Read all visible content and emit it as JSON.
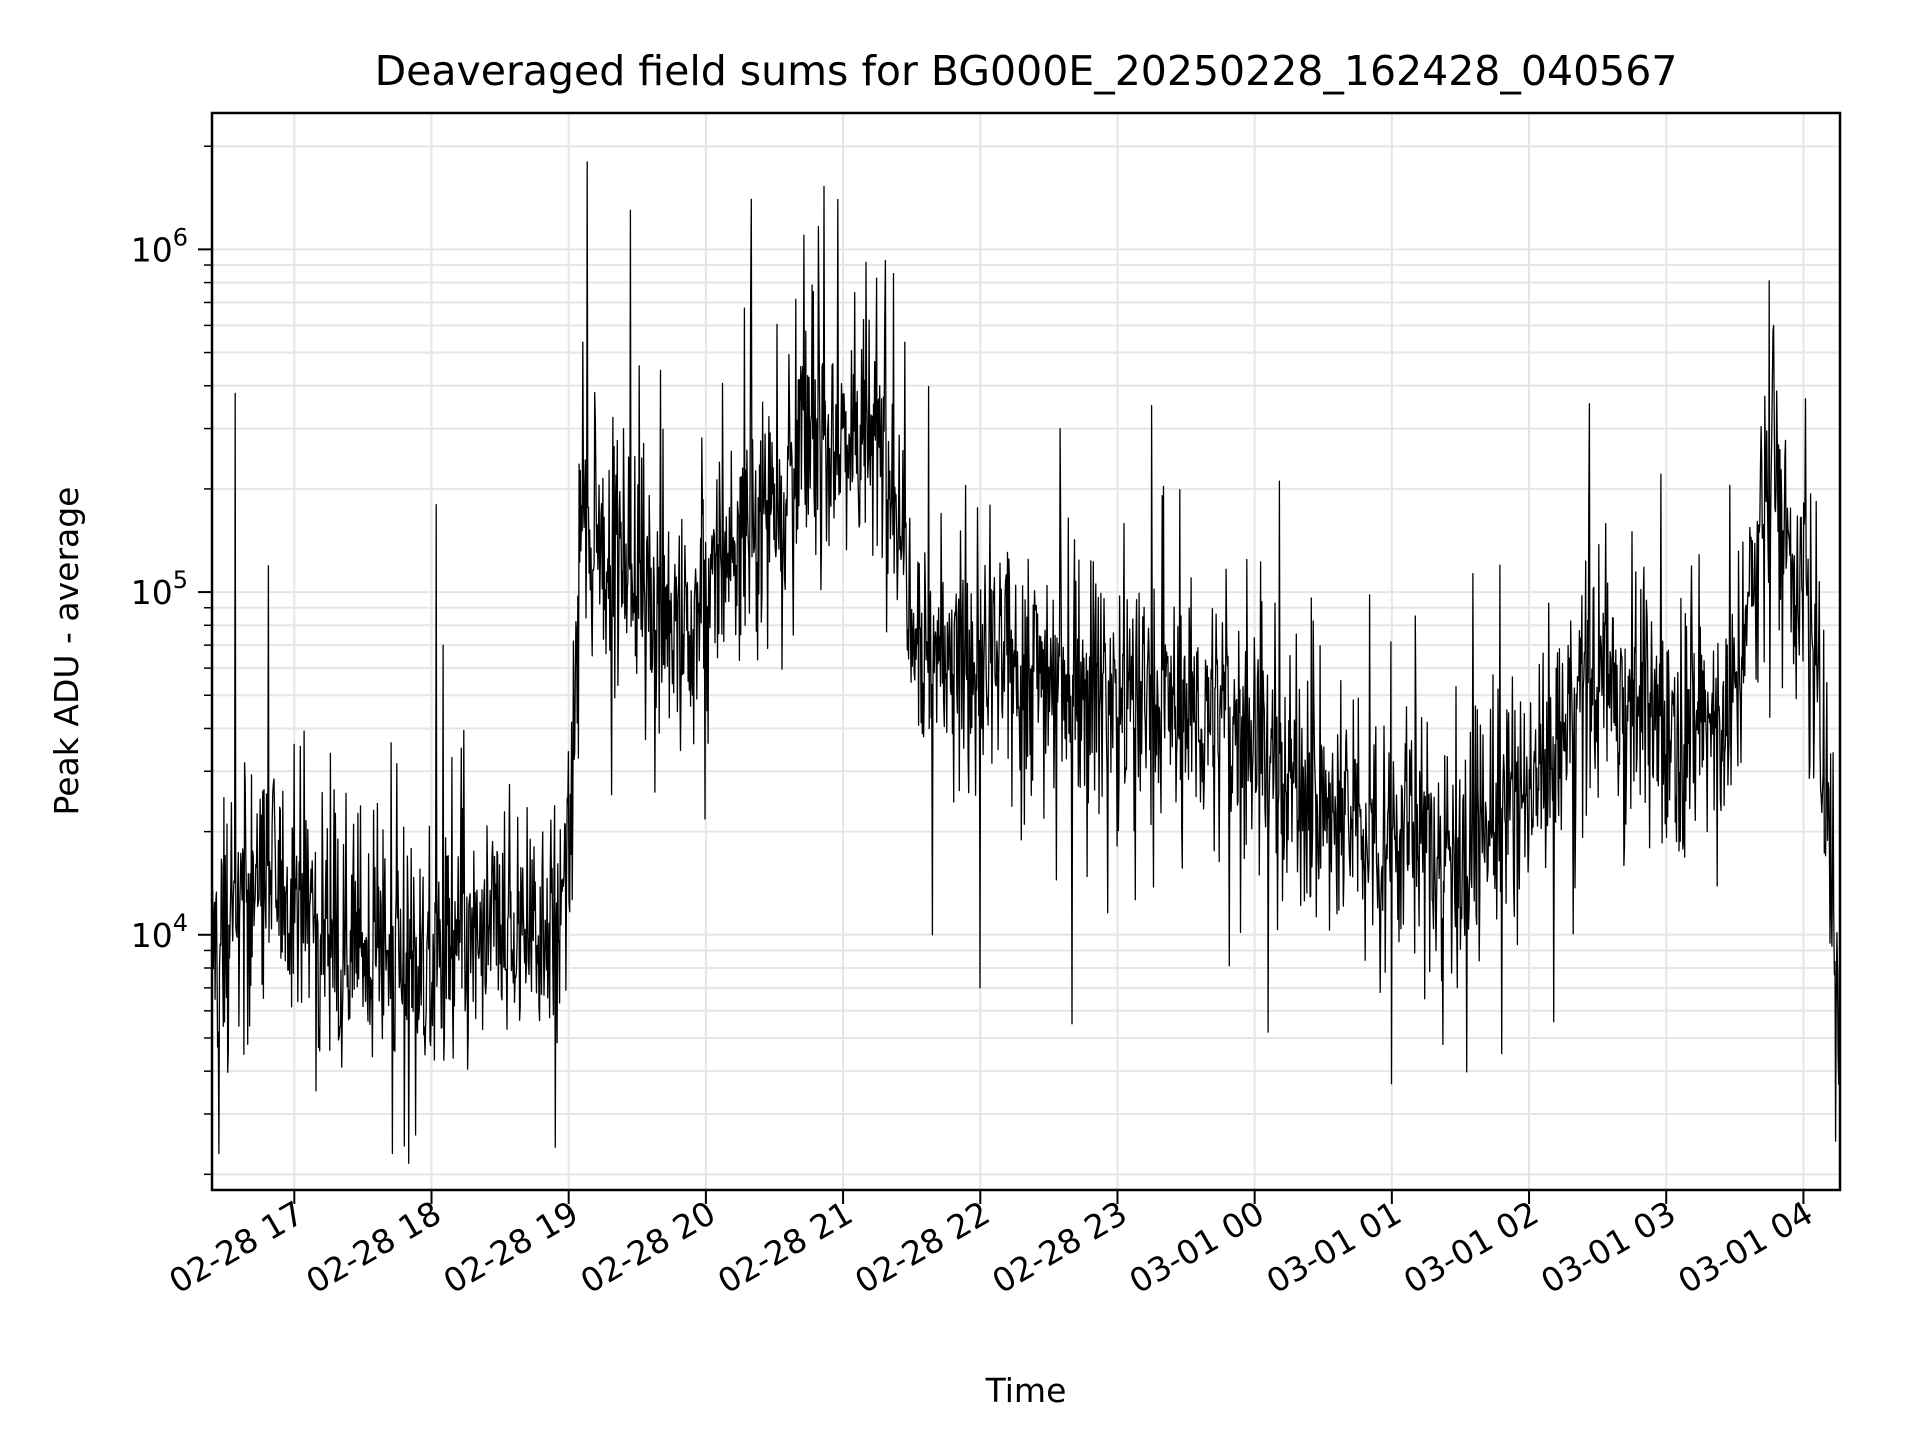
{
  "chart_data": {
    "type": "line",
    "title": "Deaveraged field sums for BG000E_20250228_162428_040567",
    "xlabel": "Time",
    "ylabel": "Peak ADU - average",
    "yscale": "log",
    "ylim": [
      1800,
      2500000
    ],
    "xlim": [
      "02-28 16:24",
      "03-01 04:16"
    ],
    "grid": true,
    "line_color": "#000000",
    "x_ticks": [
      {
        "time": "02-28 17",
        "label": "02-28 17"
      },
      {
        "time": "02-28 18",
        "label": "02-28 18"
      },
      {
        "time": "02-28 19",
        "label": "02-28 19"
      },
      {
        "time": "02-28 20",
        "label": "02-28 20"
      },
      {
        "time": "02-28 21",
        "label": "02-28 21"
      },
      {
        "time": "02-28 22",
        "label": "02-28 22"
      },
      {
        "time": "02-28 23",
        "label": "02-28 23"
      },
      {
        "time": "03-01 00",
        "label": "03-01 00"
      },
      {
        "time": "03-01 01",
        "label": "03-01 01"
      },
      {
        "time": "03-01 02",
        "label": "03-01 02"
      },
      {
        "time": "03-01 03",
        "label": "03-01 03"
      },
      {
        "time": "03-01 04",
        "label": "03-01 04"
      }
    ],
    "y_ticks": [
      {
        "value": 10000,
        "base": "10",
        "exp": "4"
      },
      {
        "value": 100000,
        "base": "10",
        "exp": "5"
      },
      {
        "value": 1000000,
        "base": "10",
        "exp": "6"
      }
    ],
    "series": [
      {
        "baseline": [
          [
            "02-28 16:24",
            9000
          ],
          [
            "02-28 16:45",
            15000
          ],
          [
            "02-28 17:00",
            13000
          ],
          [
            "02-28 17:30",
            9000
          ],
          [
            "02-28 18:00",
            8000
          ],
          [
            "02-28 18:30",
            10000
          ],
          [
            "02-28 19:00",
            12000
          ],
          [
            "02-28 19:05",
            150000
          ],
          [
            "02-28 19:30",
            120000
          ],
          [
            "02-28 19:50",
            70000
          ],
          [
            "02-28 20:10",
            130000
          ],
          [
            "02-28 20:40",
            250000
          ],
          [
            "02-28 21:00",
            300000
          ],
          [
            "02-28 21:20",
            250000
          ],
          [
            "02-28 21:35",
            70000
          ],
          [
            "02-28 22:00",
            60000
          ],
          [
            "02-28 22:30",
            60000
          ],
          [
            "02-28 23:00",
            50000
          ],
          [
            "02-28 23:30",
            45000
          ],
          [
            "03-01 00:00",
            40000
          ],
          [
            "03-01 00:30",
            22000
          ],
          [
            "03-01 01:00",
            20000
          ],
          [
            "03-01 01:30",
            18000
          ],
          [
            "03-01 02:00",
            25000
          ],
          [
            "03-01 02:30",
            60000
          ],
          [
            "03-01 03:00",
            40000
          ],
          [
            "03-01 03:30",
            45000
          ],
          [
            "03-01 03:45",
            250000
          ],
          [
            "03-01 04:00",
            100000
          ],
          [
            "03-01 04:10",
            30000
          ],
          [
            "03-01 04:16",
            6000
          ]
        ],
        "peaks": [
          [
            "02-28 16:34",
            380000
          ],
          [
            "02-28 18:02",
            180000
          ],
          [
            "02-28 19:08",
            1800000
          ],
          [
            "02-28 19:27",
            1300000
          ],
          [
            "02-28 20:20",
            1400000
          ],
          [
            "02-28 20:43",
            1100000
          ],
          [
            "02-28 21:22",
            850000
          ],
          [
            "02-28 22:35",
            300000
          ],
          [
            "03-01 02:45",
            150000
          ],
          [
            "03-01 03:47",
            600000
          ]
        ],
        "troughs": [
          [
            "02-28 16:27",
            2300
          ],
          [
            "02-28 17:43",
            2300
          ],
          [
            "02-28 18:54",
            2400
          ],
          [
            "02-28 21:39",
            10000
          ],
          [
            "02-28 22:00",
            7000
          ],
          [
            "02-28 22:40",
            5500
          ],
          [
            "03-01 00:06",
            5200
          ],
          [
            "03-01 01:48",
            4500
          ],
          [
            "03-01 04:14",
            2500
          ]
        ]
      }
    ]
  }
}
